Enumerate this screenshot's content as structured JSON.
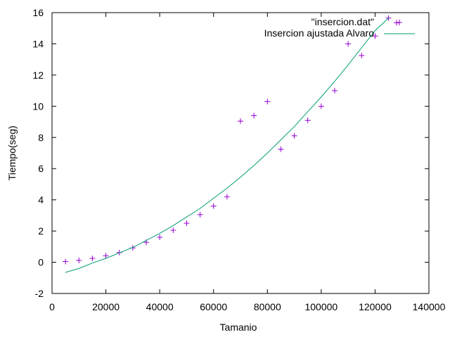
{
  "chart_data": {
    "type": "scatter",
    "title": "",
    "xlabel": "Tamanio",
    "ylabel": "Tiempo(seg)",
    "xlim": [
      0,
      140000
    ],
    "ylim": [
      -2,
      16
    ],
    "xticks": [
      0,
      20000,
      40000,
      60000,
      80000,
      100000,
      120000,
      140000
    ],
    "yticks": [
      -2,
      0,
      2,
      4,
      6,
      8,
      10,
      12,
      14,
      16
    ],
    "grid": false,
    "legend_position": "top-right",
    "series": [
      {
        "name": "\"insercion.dat\"",
        "kind": "points",
        "marker": "plus",
        "color": "#9400d3",
        "x": [
          5000,
          10000,
          15000,
          20000,
          25000,
          30000,
          35000,
          40000,
          45000,
          50000,
          55000,
          60000,
          65000,
          70000,
          75000,
          80000,
          85000,
          90000,
          95000,
          100000,
          105000,
          110000,
          115000,
          120000,
          125000,
          128000
        ],
        "y": [
          0.05,
          0.12,
          0.25,
          0.42,
          0.62,
          0.92,
          1.28,
          1.6,
          2.05,
          2.5,
          3.05,
          3.6,
          4.2,
          9.05,
          9.4,
          10.3,
          7.25,
          8.1,
          9.1,
          10.0,
          11.0,
          14.0,
          13.25,
          14.5,
          15.65,
          15.35
        ]
      },
      {
        "name": "Insercion ajustada Alvaro",
        "kind": "line",
        "color": "#009e73",
        "x": [
          5000,
          10000,
          15000,
          20000,
          25000,
          30000,
          35000,
          40000,
          45000,
          50000,
          55000,
          60000,
          65000,
          70000,
          75000,
          80000,
          85000,
          90000,
          95000,
          100000,
          105000,
          110000,
          115000,
          120000,
          125000
        ],
        "y": [
          -0.65,
          -0.4,
          -0.05,
          0.25,
          0.6,
          0.95,
          1.4,
          1.85,
          2.35,
          2.9,
          3.45,
          4.1,
          4.75,
          5.45,
          6.2,
          7.0,
          7.85,
          8.7,
          9.65,
          10.6,
          11.6,
          12.65,
          13.75,
          14.85,
          15.65
        ]
      }
    ]
  }
}
